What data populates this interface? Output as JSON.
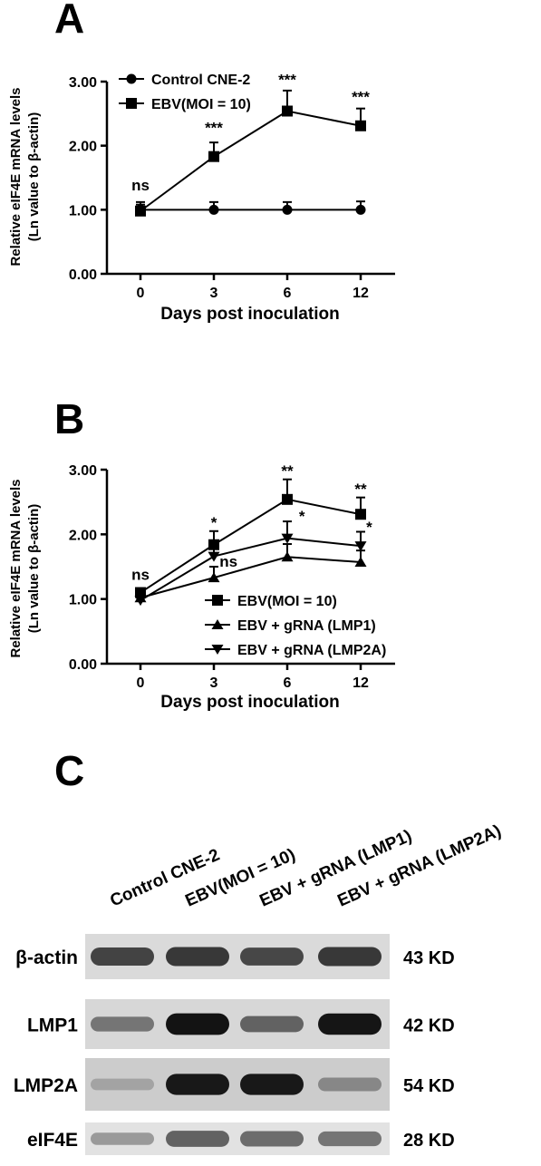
{
  "panels": [
    {
      "letter": "A",
      "chart_data": {
        "type": "line",
        "xlabel": "Days post inoculation",
        "ylabel": [
          "Relative eIF4E mRNA levels",
          "(Ln value to β-actin)"
        ],
        "x": [
          0,
          3,
          6,
          12
        ],
        "xtick_labels": [
          "0",
          "3",
          "6",
          "12"
        ],
        "ylim": [
          0,
          3
        ],
        "yticks": [
          0,
          1,
          2,
          3
        ],
        "ytick_labels": [
          "0.00",
          "1.00",
          "2.00",
          "3.00"
        ],
        "legend_position": "top-left",
        "series": [
          {
            "name": "Control CNE-2",
            "marker": "circle",
            "values": [
              1.0,
              1.0,
              1.0,
              1.0
            ],
            "errors": [
              0.12,
              0.12,
              0.12,
              0.13
            ]
          },
          {
            "name": "EBV(MOI = 10)",
            "marker": "square",
            "values": [
              0.98,
              1.83,
              2.54,
              2.31
            ],
            "errors": [
              0.1,
              0.22,
              0.32,
              0.27
            ]
          }
        ],
        "annotations": [
          {
            "x": 0,
            "text": "ns",
            "y": 1.3
          },
          {
            "x": 3,
            "text": "***",
            "y": 2.2
          },
          {
            "x": 6,
            "text": "***",
            "y": 2.95
          },
          {
            "x": 12,
            "text": "***",
            "y": 2.68
          }
        ]
      }
    },
    {
      "letter": "B",
      "chart_data": {
        "type": "line",
        "xlabel": "Days post inoculation",
        "ylabel": [
          "Relative eIF4E mRNA levels",
          "(Ln value to β-actin)"
        ],
        "x": [
          0,
          3,
          6,
          12
        ],
        "xtick_labels": [
          "0",
          "3",
          "6",
          "12"
        ],
        "ylim": [
          0,
          3
        ],
        "yticks": [
          0,
          1,
          2,
          3
        ],
        "ytick_labels": [
          "0.00",
          "1.00",
          "2.00",
          "3.00"
        ],
        "legend_position": "bottom-right",
        "series": [
          {
            "name": "EBV(MOI = 10)",
            "marker": "square",
            "values": [
              1.1,
              1.84,
              2.54,
              2.31
            ],
            "errors": [
              0.05,
              0.21,
              0.31,
              0.26
            ]
          },
          {
            "name": "EBV + gRNA (LMP1)",
            "marker": "triangle-up",
            "values": [
              1.02,
              1.33,
              1.65,
              1.57
            ],
            "errors": [
              0.05,
              0.17,
              0.2,
              0.18
            ]
          },
          {
            "name": "EBV + gRNA (LMP2A)",
            "marker": "triangle-down",
            "values": [
              0.98,
              1.66,
              1.94,
              1.82
            ],
            "errors": [
              0.05,
              0.22,
              0.26,
              0.22
            ]
          }
        ],
        "annotations": [
          {
            "x": 0,
            "text": "ns",
            "y": 1.3
          },
          {
            "x": 3,
            "text": "*",
            "y": 2.1
          },
          {
            "x": 3.6,
            "text": "ns",
            "y": 1.5
          },
          {
            "x": 6,
            "text": "**",
            "y": 2.9
          },
          {
            "x": 7.2,
            "text": "*",
            "y": 2.2
          },
          {
            "x": 12,
            "text": "**",
            "y": 2.62
          },
          {
            "x": 12.7,
            "text": "*",
            "y": 2.03
          }
        ]
      }
    }
  ],
  "panel_c": {
    "letter": "C",
    "lanes": [
      "Control CNE-2",
      "EBV(MOI = 10)",
      "EBV + gRNA (LMP1)",
      "EBV + gRNA (LMP2A)"
    ],
    "rows": [
      {
        "label": "β-actin",
        "size": "43 KD",
        "bg": "#dadada",
        "intensities": [
          0.72,
          0.78,
          0.7,
          0.78
        ]
      },
      {
        "label": "LMP1",
        "size": "42 KD",
        "bg": "#d7d7d7",
        "intensities": [
          0.45,
          0.98,
          0.55,
          0.97
        ]
      },
      {
        "label": "LMP2A",
        "size": "54 KD",
        "bg": "#cccccc",
        "intensities": [
          0.2,
          0.95,
          0.95,
          0.35
        ]
      },
      {
        "label": "eIF4E",
        "size": "28 KD",
        "bg": "#e2e2e2",
        "intensities": [
          0.25,
          0.55,
          0.5,
          0.45
        ]
      }
    ]
  }
}
